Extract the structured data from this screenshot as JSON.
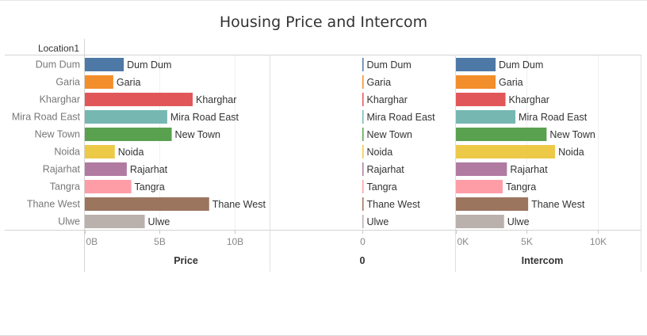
{
  "title": "Housing Price and Intercom",
  "row_header": "Location1",
  "chart_data": {
    "type": "bar",
    "orientation": "horizontal",
    "categories": [
      "Dum Dum",
      "Garia",
      "Kharghar",
      "Mira Road East",
      "New Town",
      "Noida",
      "Rajarhat",
      "Tangra",
      "Thane West",
      "Ulwe"
    ],
    "colors": [
      "#4e79a7",
      "#f28e2b",
      "#e15759",
      "#76b7b2",
      "#59a14f",
      "#edc948",
      "#b07aa1",
      "#ff9da7",
      "#9c755f",
      "#bab0ac"
    ],
    "panels": [
      {
        "axis_title": "Price",
        "xlim": [
          0,
          13500000000
        ],
        "ticks": [
          0,
          5000000000,
          10000000000
        ],
        "tick_labels": [
          "0B",
          "5B",
          "10B"
        ],
        "values": [
          2600000000,
          1900000000,
          7200000000,
          5500000000,
          5800000000,
          2000000000,
          2800000000,
          3100000000,
          8300000000,
          4000000000
        ]
      },
      {
        "axis_title": "0",
        "xlim": [
          0,
          1
        ],
        "ticks": [
          0
        ],
        "tick_labels": [
          "0"
        ],
        "values": [
          0,
          0,
          0,
          0,
          0,
          0,
          0,
          0,
          0,
          0
        ]
      },
      {
        "axis_title": "Intercom",
        "xlim": [
          0,
          12200
        ],
        "ticks": [
          0,
          5000,
          10000
        ],
        "tick_labels": [
          "0K",
          "5K",
          "10K"
        ],
        "values": [
          2800,
          2800,
          3500,
          4200,
          6400,
          7000,
          3600,
          3300,
          5100,
          3400
        ]
      }
    ]
  }
}
